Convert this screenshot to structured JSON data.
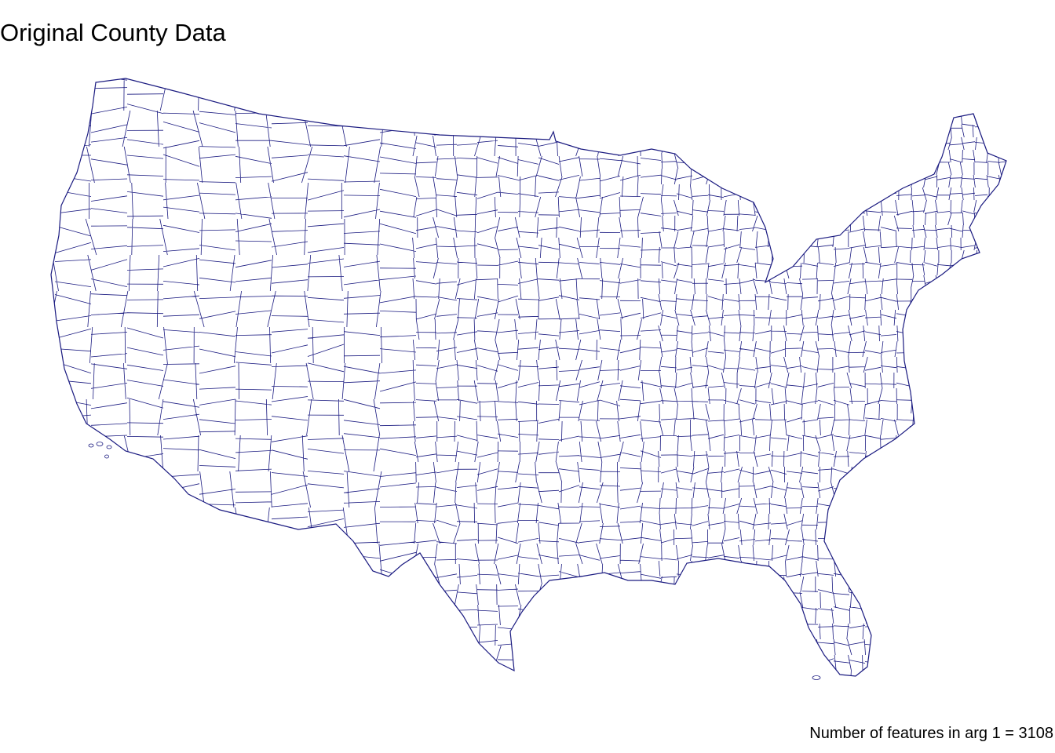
{
  "title": "Original County Data",
  "caption": "Number of features in arg 1 =  3108",
  "map": {
    "region": "Contiguous United States",
    "feature_type": "county",
    "feature_count": 3108,
    "stroke_color": "#1a1a80",
    "fill_color": "#ffffff"
  }
}
